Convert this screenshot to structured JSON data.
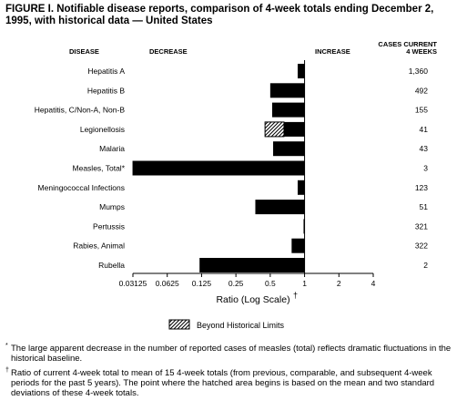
{
  "figure": {
    "title": "FIGURE I. Notifiable disease reports, comparison of 4-week totals ending December 2, 1995, with historical data — United States"
  },
  "headers": {
    "disease": "DISEASE",
    "decrease": "DECREASE",
    "increase": "INCREASE",
    "cases_line1": "CASES CURRENT",
    "cases_line2": "4 WEEKS"
  },
  "chart_data": {
    "type": "bar",
    "orientation": "horizontal",
    "x_scale": "log2",
    "xlabel": "Ratio (Log Scale)",
    "xlabel_mark": "†",
    "xlim": [
      0.03125,
      4
    ],
    "xticks": [
      0.03125,
      0.0625,
      0.125,
      0.25,
      0.5,
      1,
      2,
      4
    ],
    "xtick_labels": [
      "0.03125",
      "0.0625",
      "0.125",
      "0.25",
      "0.5",
      "1",
      "2",
      "4"
    ],
    "baseline": 1,
    "categories": [
      "Hepatitis A",
      "Hepatitis B",
      "Hepatitis, C/Non-A, Non-B",
      "Legionellosis",
      "Malaria",
      "Measles, Total*",
      "Meningococcal Infections",
      "Mumps",
      "Pertussis",
      "Rabies, Animal",
      "Rubella"
    ],
    "values": [
      0.87,
      0.5,
      0.52,
      0.45,
      0.53,
      0.031,
      0.87,
      0.37,
      0.98,
      0.77,
      0.12
    ],
    "hatch_start": [
      null,
      null,
      null,
      0.66,
      null,
      null,
      null,
      null,
      null,
      null,
      null
    ],
    "cases": [
      "1,360",
      "492",
      "155",
      "41",
      "43",
      "3",
      "123",
      "51",
      "321",
      "322",
      "2"
    ],
    "legend": {
      "label": "Beyond Historical Limits",
      "position": "bottom-center"
    },
    "colors": {
      "bar": "#000000",
      "hatch": "#000000",
      "background": "#ffffff"
    }
  },
  "footnotes": [
    {
      "mark": "*",
      "text": "The large apparent decrease in the number of reported cases of measles (total) reflects dramatic fluctuations in the historical baseline."
    },
    {
      "mark": "†",
      "text": "Ratio of current 4-week total to mean of 15 4-week totals (from previous, comparable, and subsequent 4-week periods for the past 5 years). The point where the hatched area begins is based on the mean and two standard deviations of these 4-week totals."
    }
  ]
}
